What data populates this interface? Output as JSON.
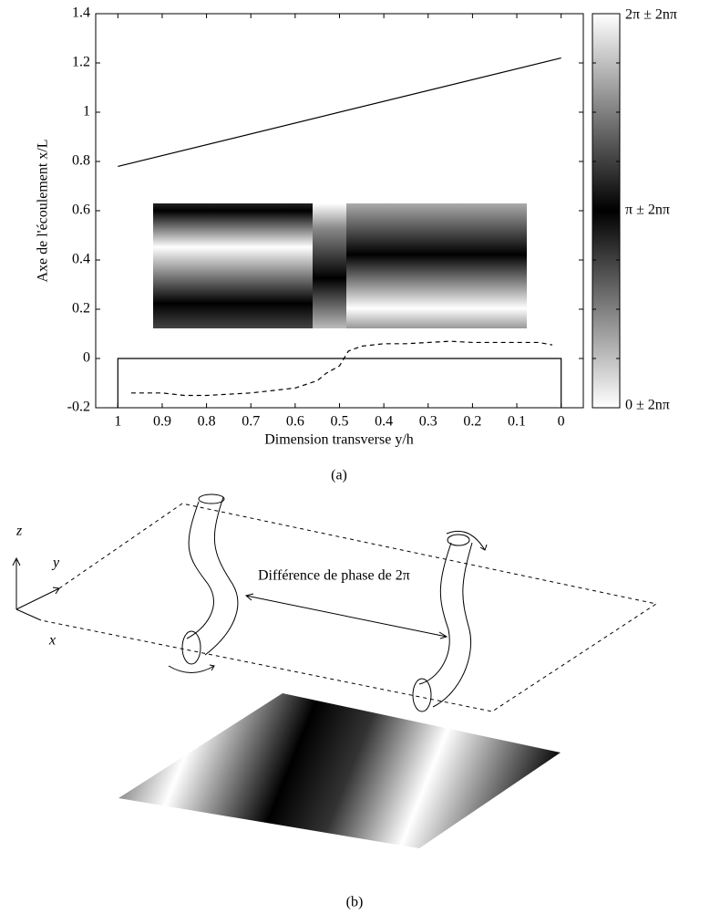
{
  "chart_data": {
    "type": "line",
    "ylabel": "Axe de l'écoulement x/L",
    "xlabel": "Dimension transverse y/h",
    "caption": "(a)",
    "xlim": [
      1.05,
      -0.05
    ],
    "ylim": [
      -0.2,
      1.4
    ],
    "xticks": [
      1,
      0.9,
      0.8,
      0.7,
      0.6,
      0.5,
      0.4,
      0.3,
      0.2,
      0.1,
      0
    ],
    "yticks": [
      1.4,
      1.2,
      1,
      0.8,
      0.6,
      0.4,
      0.2,
      0,
      -0.2
    ],
    "series": [
      {
        "color": "#000000",
        "dashed": false,
        "x": [
          1,
          0
        ],
        "values": [
          0.78,
          1.22
        ]
      },
      {
        "color": "#000000",
        "dashed": false,
        "x": [
          1,
          1,
          0,
          0
        ],
        "values": [
          -0.2,
          0,
          0,
          -0.2
        ]
      },
      {
        "color": "#000000",
        "dashed": true,
        "x": [
          0.97,
          0.9,
          0.85,
          0.8,
          0.7,
          0.65,
          0.6,
          0.55,
          0.53,
          0.5,
          0.48,
          0.45,
          0.4,
          0.35,
          0.3,
          0.25,
          0.2,
          0.15,
          0.1,
          0.05,
          0.02
        ],
        "values": [
          -0.14,
          -0.14,
          -0.15,
          -0.15,
          -0.14,
          -0.13,
          -0.12,
          -0.09,
          -0.06,
          -0.03,
          0.03,
          0.05,
          0.06,
          0.06,
          0.065,
          0.07,
          0.065,
          0.065,
          0.065,
          0.065,
          0.055
        ]
      }
    ],
    "colorbar": {
      "clim": [
        0,
        6.2832
      ],
      "ticks": [
        {
          "value": 6.2832,
          "label": "2π ± 2nπ"
        },
        {
          "value": 3.1416,
          "label": "π ± 2nπ"
        },
        {
          "value": 0,
          "label": "0 ± 2nπ"
        }
      ]
    }
  },
  "diagram": {
    "axis_z": "z",
    "axis_y": "y",
    "axis_x": "x",
    "annotation": "Différence de phase de 2π",
    "caption": "(b)"
  }
}
